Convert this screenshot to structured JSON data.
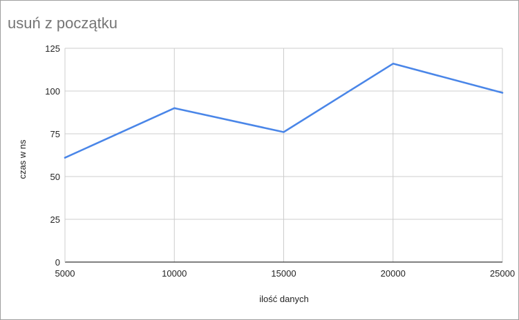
{
  "chart_data": {
    "type": "line",
    "title": "usuń z początku",
    "xlabel": "ilość danych",
    "ylabel": "czas w ns",
    "x": [
      5000,
      10000,
      15000,
      20000,
      25000
    ],
    "series": [
      {
        "values": [
          61,
          90,
          76,
          116,
          99
        ]
      }
    ],
    "xlim": [
      5000,
      25000
    ],
    "ylim": [
      0,
      125
    ],
    "xticks": [
      5000,
      10000,
      15000,
      20000,
      25000
    ],
    "yticks": [
      0,
      25,
      50,
      75,
      100,
      125
    ],
    "grid": true,
    "legend": "none",
    "colors": {
      "line": "#4a86e8",
      "grid": "#cccccc",
      "axis": "#333333",
      "title": "#757575"
    }
  }
}
